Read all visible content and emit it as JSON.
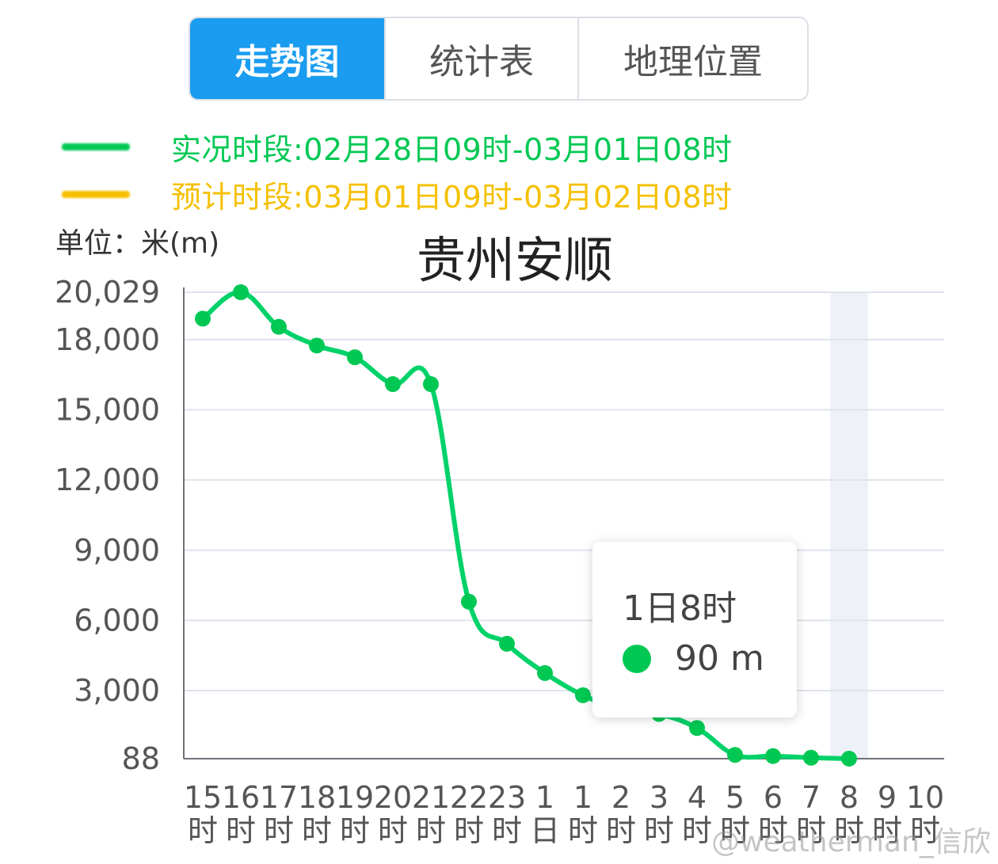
{
  "tabs": [
    {
      "label": "走势图",
      "active": true
    },
    {
      "label": "统计表",
      "active": false
    },
    {
      "label": "地理位置",
      "active": false
    }
  ],
  "legend": [
    {
      "text": "实况时段:02月28日09时-03月01日08时",
      "color": "#00c853"
    },
    {
      "text": "预计时段:03月01日09时-03月02日08时",
      "color": "#f5c000"
    }
  ],
  "unit_label": "单位：米(m)",
  "watermark": "@weatherman_信欣",
  "tooltip": {
    "title": "1日8时",
    "value": "90 m",
    "dot_color": "#00c853"
  },
  "chart_data": {
    "type": "line",
    "title": "贵州安顺",
    "y_ticks": [
      "88",
      "3,000",
      "6,000",
      "9,000",
      "12,000",
      "15,000",
      "18,000",
      "20,029"
    ],
    "y_tick_values": [
      88,
      3000,
      6000,
      9000,
      12000,
      15000,
      18000,
      20029
    ],
    "ylim": [
      88,
      20029
    ],
    "categories": [
      "15时",
      "16时",
      "17时",
      "18时",
      "19时",
      "20时",
      "21时",
      "22时",
      "23时",
      "1日",
      "1时",
      "2时",
      "3时",
      "4时",
      "5时",
      "6时",
      "7时",
      "8时",
      "9时",
      "10时"
    ],
    "x_labels": [
      [
        "15",
        "时"
      ],
      [
        "16",
        "时"
      ],
      [
        "17",
        "时"
      ],
      [
        "18",
        "时"
      ],
      [
        "19",
        "时"
      ],
      [
        "20",
        "时"
      ],
      [
        "21",
        "时"
      ],
      [
        "22",
        "时"
      ],
      [
        "23",
        "时"
      ],
      [
        "1",
        "日"
      ],
      [
        "1",
        "时"
      ],
      [
        "2",
        "时"
      ],
      [
        "3",
        "时"
      ],
      [
        "4",
        "时"
      ],
      [
        "5",
        "时"
      ],
      [
        "6",
        "时"
      ],
      [
        "7",
        "时"
      ],
      [
        "8",
        "时"
      ],
      [
        "9",
        "时"
      ],
      [
        "10",
        "时"
      ]
    ],
    "series": [
      {
        "values": [
          18900,
          20029,
          18550,
          17750,
          17250,
          16100,
          16100,
          6800,
          5000,
          3750,
          2800,
          2200,
          2000,
          1400,
          250,
          200,
          130,
          90,
          null,
          null
        ]
      }
    ],
    "observed_color": "#00d26a",
    "forecast_color": "#f5c000",
    "highlight_category_index": 17,
    "grid": true
  }
}
